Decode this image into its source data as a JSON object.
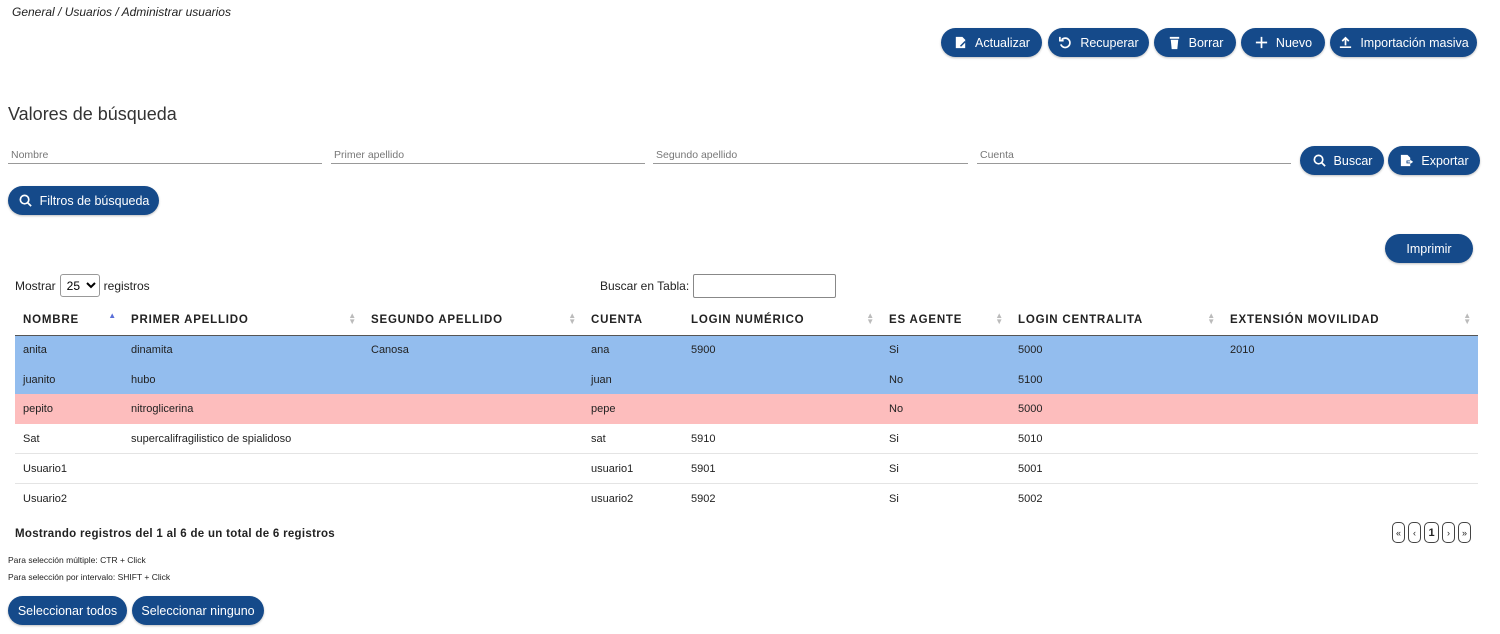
{
  "breadcrumb": "General / Usuarios / Administrar usuarios",
  "toolbar": {
    "refresh_label": "Actualizar",
    "recover_label": "Recuperar",
    "delete_label": "Borrar",
    "new_label": "Nuevo",
    "import_label": "Importación masiva"
  },
  "search": {
    "title": "Valores de búsqueda",
    "name_placeholder": "Nombre",
    "first_surname_placeholder": "Primer apellido",
    "second_surname_placeholder": "Segundo apellido",
    "account_placeholder": "Cuenta",
    "search_label": "Buscar",
    "export_label": "Exportar",
    "filters_label": "Filtros de búsqueda"
  },
  "print_label": "Imprimir",
  "table_controls": {
    "show_label": "Mostrar",
    "page_size": "25",
    "records_label": "registros",
    "table_search_label": "Buscar en Tabla:"
  },
  "table": {
    "columns": [
      "Nombre",
      "Primer apellido",
      "Segundo apellido",
      "Cuenta",
      "Login numérico",
      "Es agente",
      "Login centralita",
      "Extensión movilidad"
    ],
    "rows": [
      [
        "anita",
        "dinamita",
        "Canosa",
        "ana",
        "5900",
        "Si",
        "5000",
        "2010"
      ],
      [
        "juanito",
        "hubo",
        "",
        "juan",
        "",
        "No",
        "5100",
        ""
      ],
      [
        "pepito",
        "nitroglicerina",
        "",
        "pepe",
        "",
        "No",
        "5000",
        ""
      ],
      [
        "Sat",
        "supercalifragilistico de spialidoso",
        "",
        "sat",
        "5910",
        "Si",
        "5010",
        ""
      ],
      [
        "Usuario1",
        "",
        "",
        "usuario1",
        "5901",
        "Si",
        "5001",
        ""
      ],
      [
        "Usuario2",
        "",
        "",
        "usuario2",
        "5902",
        "Si",
        "5002",
        ""
      ]
    ]
  },
  "summary": "Mostrando registros del 1 al 6 de un total de 6 registros",
  "pagination": {
    "first": "«",
    "prev": "‹",
    "current": "1",
    "next": "›",
    "last": "»"
  },
  "hints": {
    "multi": "Para selección múltiple: CTR + Click",
    "range": "Para selección por intervalo: SHIFT + Click"
  },
  "select_all_label": "Seleccionar todos",
  "select_none_label": "Seleccionar ninguno",
  "colors": {
    "primary": "#154a8a",
    "selected_row": "#93bdee",
    "warning_row": "#fdbdbd"
  }
}
